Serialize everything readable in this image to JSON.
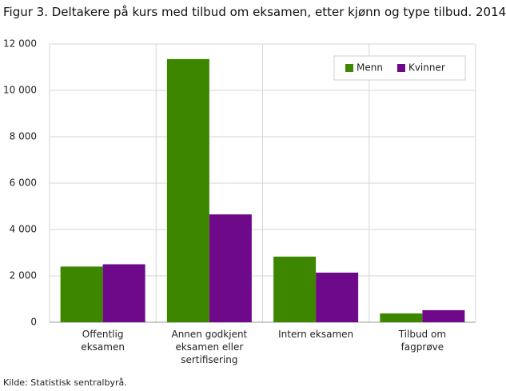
{
  "chart_data": {
    "type": "bar",
    "title": "Figur 3. Deltakere på kurs med tilbud om eksamen, etter kjønn og type tilbud. 2014",
    "source": "Kilde: Statistisk sentralbyrå.",
    "categories": [
      "Offentlig eksamen",
      "Annen godkjent eksamen eller sertifisering",
      "Intern eksamen",
      "Tilbud om fagprøve"
    ],
    "series": [
      {
        "name": "Menn",
        "color": "#3d8600",
        "values": [
          2400,
          11350,
          2830,
          380
        ]
      },
      {
        "name": "Kvinner",
        "color": "#6e0a8a",
        "values": [
          2500,
          4650,
          2140,
          520
        ]
      }
    ],
    "ylim": [
      0,
      12000
    ],
    "yticks": [
      0,
      {
        "value": 2000,
        "label": "2 000"
      },
      {
        "value": 4000,
        "label": "4 000"
      },
      {
        "value": 6000,
        "label": "6 000"
      },
      {
        "value": 8000,
        "label": "8 000"
      },
      {
        "value": 10000,
        "label": "10 000"
      },
      {
        "value": 12000,
        "label": "12 000"
      }
    ],
    "grid": true,
    "legend": "top-right"
  }
}
